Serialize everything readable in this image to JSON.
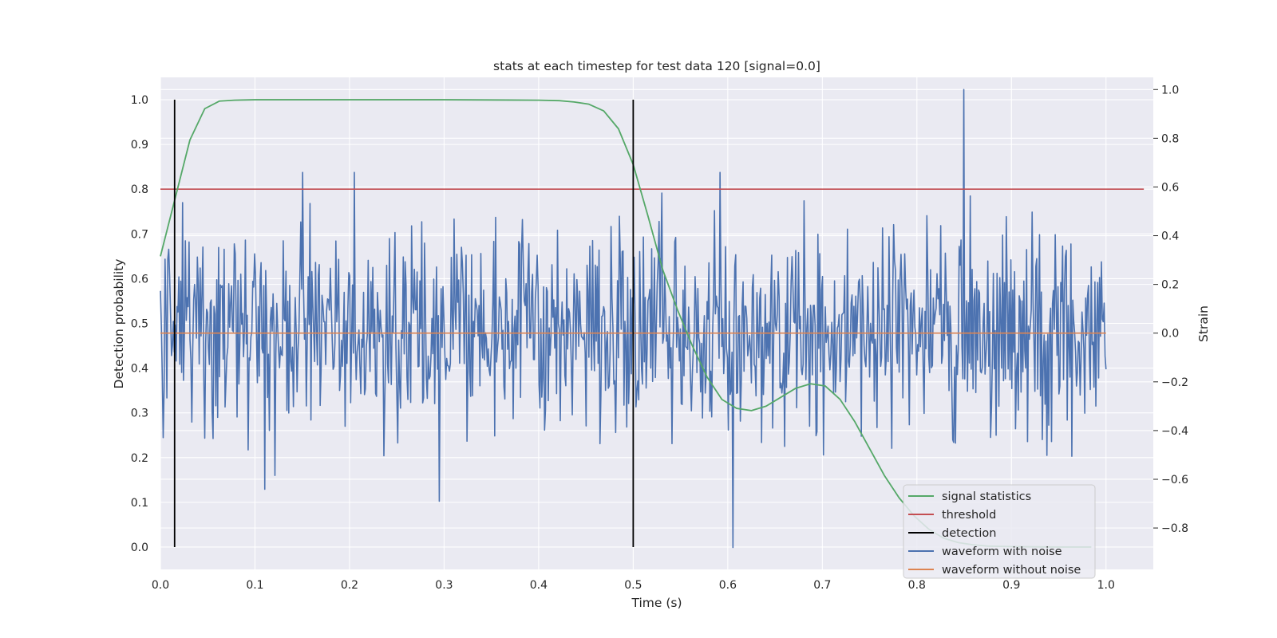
{
  "chart_data": {
    "type": "line",
    "title": "stats at each timestep for test data 120 [signal=0.0]",
    "xlabel": "Time (s)",
    "ylabel_left": "Detection probability",
    "ylabel_right": "Strain",
    "xlim": [
      0.0,
      1.05
    ],
    "ylim_left": [
      -0.05,
      1.05
    ],
    "ylim_right": [
      -0.97,
      1.05
    ],
    "x_ticks": [
      0.0,
      0.1,
      0.2,
      0.3,
      0.4,
      0.5,
      0.6,
      0.7,
      0.8,
      0.9,
      1.0
    ],
    "x_tick_labels": [
      "0.0",
      "0.1",
      "0.2",
      "0.3",
      "0.4",
      "0.5",
      "0.6",
      "0.7",
      "0.8",
      "0.9",
      "1.0"
    ],
    "y_left_ticks": [
      0.0,
      0.1,
      0.2,
      0.3,
      0.4,
      0.5,
      0.6,
      0.7,
      0.8,
      0.9,
      1.0
    ],
    "y_left_tick_labels": [
      "0.0",
      "0.1",
      "0.2",
      "0.3",
      "0.4",
      "0.5",
      "0.6",
      "0.7",
      "0.8",
      "0.9",
      "1.0"
    ],
    "y_right_ticks": [
      -0.8,
      -0.6,
      -0.4,
      -0.2,
      0.0,
      0.2,
      0.4,
      0.6,
      0.8,
      1.0
    ],
    "y_right_tick_labels": [
      "−0.8",
      "−0.6",
      "−0.4",
      "−0.2",
      "0.0",
      "0.2",
      "0.4",
      "0.6",
      "0.8",
      "1.0"
    ],
    "grid": true,
    "legend_position": "lower right",
    "legend": [
      {
        "label": "signal statistics",
        "color": "#55a868"
      },
      {
        "label": "threshold",
        "color": "#c44e52"
      },
      {
        "label": "detection",
        "color": "#000000"
      },
      {
        "label": "waveform with noise",
        "color": "#4c72b0"
      },
      {
        "label": "waveform without noise",
        "color": "#dd8452"
      }
    ],
    "series": [
      {
        "name": "signal statistics",
        "axis": "left",
        "color": "#55a868",
        "x": [
          0.0,
          0.0156,
          0.0312,
          0.0469,
          0.0625,
          0.0781,
          0.1,
          0.2,
          0.3,
          0.4,
          0.4219,
          0.4375,
          0.4531,
          0.4688,
          0.4844,
          0.5,
          0.5156,
          0.5312,
          0.5469,
          0.5625,
          0.5781,
          0.5938,
          0.6094,
          0.625,
          0.6406,
          0.6562,
          0.6719,
          0.6875,
          0.7031,
          0.7188,
          0.7344,
          0.75,
          0.7656,
          0.7812,
          0.7969,
          0.8125,
          0.8281,
          0.8438,
          0.8594,
          0.875,
          0.9,
          0.95,
          0.9844
        ],
        "y": [
          0.65,
          0.78,
          0.91,
          0.98,
          0.997,
          0.999,
          1.0,
          1.0,
          1.0,
          0.999,
          0.998,
          0.995,
          0.99,
          0.975,
          0.935,
          0.855,
          0.74,
          0.62,
          0.53,
          0.45,
          0.38,
          0.33,
          0.31,
          0.305,
          0.315,
          0.335,
          0.355,
          0.365,
          0.36,
          0.33,
          0.28,
          0.22,
          0.16,
          0.11,
          0.07,
          0.04,
          0.02,
          0.01,
          0.005,
          0.002,
          0.001,
          0.0,
          0.0
        ]
      },
      {
        "name": "threshold",
        "axis": "left",
        "color": "#c44e52",
        "x": [
          0.0,
          1.04
        ],
        "y": [
          0.8,
          0.8
        ]
      },
      {
        "name": "detection",
        "axis": "left",
        "color": "#000000",
        "segments": [
          {
            "x": 0.015,
            "y": [
              0.0,
              1.0
            ]
          },
          {
            "x": 0.5,
            "y": [
              0.0,
              1.0
            ]
          }
        ]
      },
      {
        "name": "waveform with noise",
        "axis": "right",
        "color": "#4c72b0",
        "x_start": 0.0,
        "x_end": 1.0,
        "min": -0.88,
        "max": 1.0,
        "peaks": [
          {
            "x": 0.15,
            "y": 0.66
          },
          {
            "x": 0.205,
            "y": 0.66
          },
          {
            "x": 0.295,
            "y": -0.69
          },
          {
            "x": 0.592,
            "y": 0.66
          },
          {
            "x": 0.605,
            "y": -0.88
          },
          {
            "x": 0.85,
            "y": 1.0
          }
        ]
      },
      {
        "name": "waveform without noise",
        "axis": "right",
        "color": "#dd8452",
        "x": [
          0.0,
          1.0
        ],
        "y": [
          0.0,
          0.0
        ]
      }
    ]
  }
}
